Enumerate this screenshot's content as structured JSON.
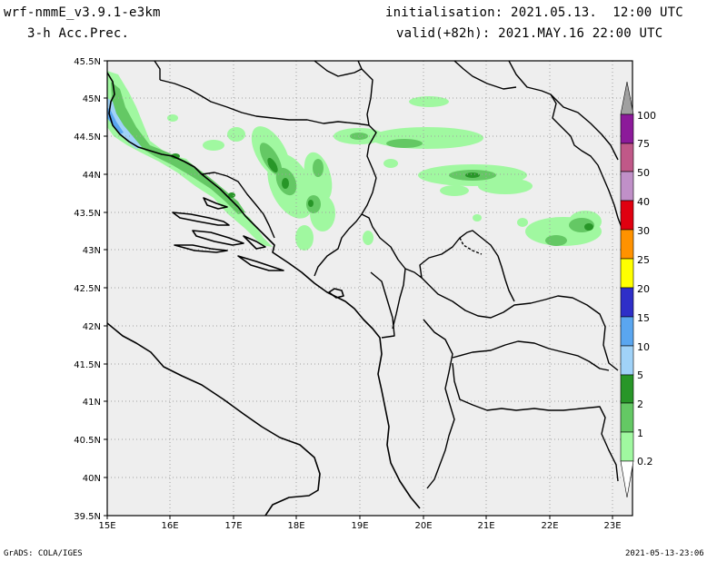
{
  "header": {
    "model": "wrf-nmmE_v3.9.1-e3km",
    "field": "3-h Acc.Prec.",
    "init": "initialisation: 2021.05.13.  12:00 UTC",
    "valid": "valid(+82h): 2021.MAY.16 22:00 UTC"
  },
  "footer": {
    "left": "GrADS: COLA/IGES",
    "right": "2021-05-13-23:06"
  },
  "map": {
    "lat_labels": [
      "45.5N",
      "45N",
      "44.5N",
      "44N",
      "43.5N",
      "43N",
      "42.5N",
      "42N",
      "41.5N",
      "41N",
      "40.5N",
      "40N",
      "39.5N"
    ],
    "lon_labels": [
      "15E",
      "16E",
      "17E",
      "18E",
      "19E",
      "20E",
      "21E",
      "22E",
      "23E"
    ],
    "background_color": "#eeeeee"
  },
  "colorbar": {
    "labels": [
      "100",
      "75",
      "50",
      "40",
      "30",
      "25",
      "20",
      "15",
      "10",
      "5",
      "2",
      "1",
      "0.2"
    ],
    "colors": [
      "#a0a0a0",
      "#8c1a9a",
      "#c05888",
      "#c090c8",
      "#e00010",
      "#ff9200",
      "#ffff00",
      "#2e2ec8",
      "#5aa6f0",
      "#a0d2f8",
      "#289628",
      "#64c864",
      "#a0f8a0",
      "#ffffff"
    ]
  }
}
